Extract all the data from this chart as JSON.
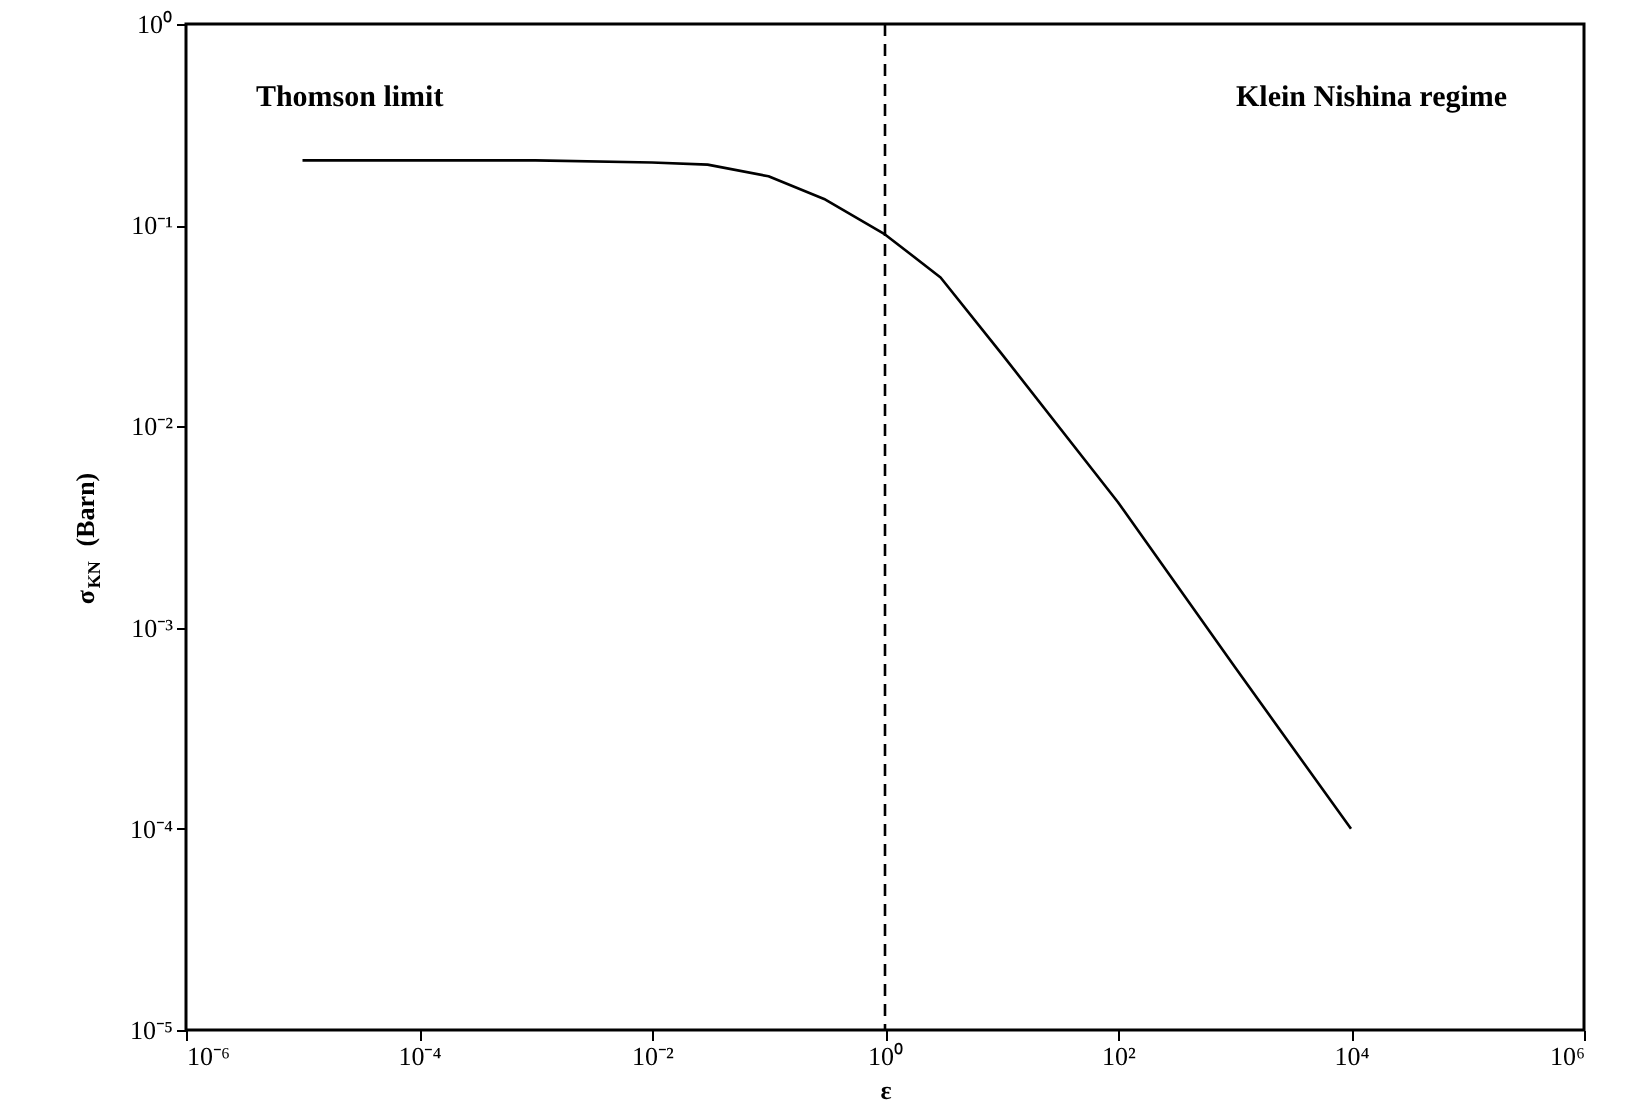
{
  "chart_data": {
    "type": "line",
    "xlabel": "ε",
    "ylabel": "σ$_{KN}$ (Barn)",
    "log": "xy",
    "x": [
      1e-05,
      0.0001,
      0.001,
      0.01,
      0.03,
      0.1,
      0.3,
      1,
      3,
      10,
      100,
      1000,
      10000
    ],
    "series": [
      {
        "color": "#000000",
        "values": [
          0.21,
          0.21,
          0.21,
          0.205,
          0.2,
          0.175,
          0.135,
          0.09,
          0.055,
          0.023,
          0.0042,
          0.00064,
          0.0001
        ]
      }
    ],
    "xlim": [
      1e-06,
      1000000.0
    ],
    "ylim": [
      1e-05,
      1
    ],
    "xticks": [
      {
        "value": 1e-06,
        "label": "10⁻⁶"
      },
      {
        "value": 0.0001,
        "label": "10⁻⁴"
      },
      {
        "value": 0.01,
        "label": "10⁻²"
      },
      {
        "value": 1,
        "label": "10⁰"
      },
      {
        "value": 100,
        "label": "10²"
      },
      {
        "value": 10000,
        "label": "10⁴"
      },
      {
        "value": 1000000.0,
        "label": "10⁶"
      }
    ],
    "yticks": [
      {
        "value": 1e-05,
        "label": "10⁻⁵"
      },
      {
        "value": 0.0001,
        "label": "10⁻⁴"
      },
      {
        "value": 0.001,
        "label": "10⁻³"
      },
      {
        "value": 0.01,
        "label": "10⁻²"
      },
      {
        "value": 0.1,
        "label": "10⁻¹"
      },
      {
        "value": 1,
        "label": "10⁰"
      }
    ],
    "ref_lines": [
      {
        "axis": "x",
        "value": 1,
        "color": "#000000",
        "line_style": "dashed"
      }
    ],
    "annotations": [
      "Thomson limit",
      "Klein Nishina regime"
    ],
    "grid": false,
    "marker": "none",
    "line_style": "solid"
  }
}
